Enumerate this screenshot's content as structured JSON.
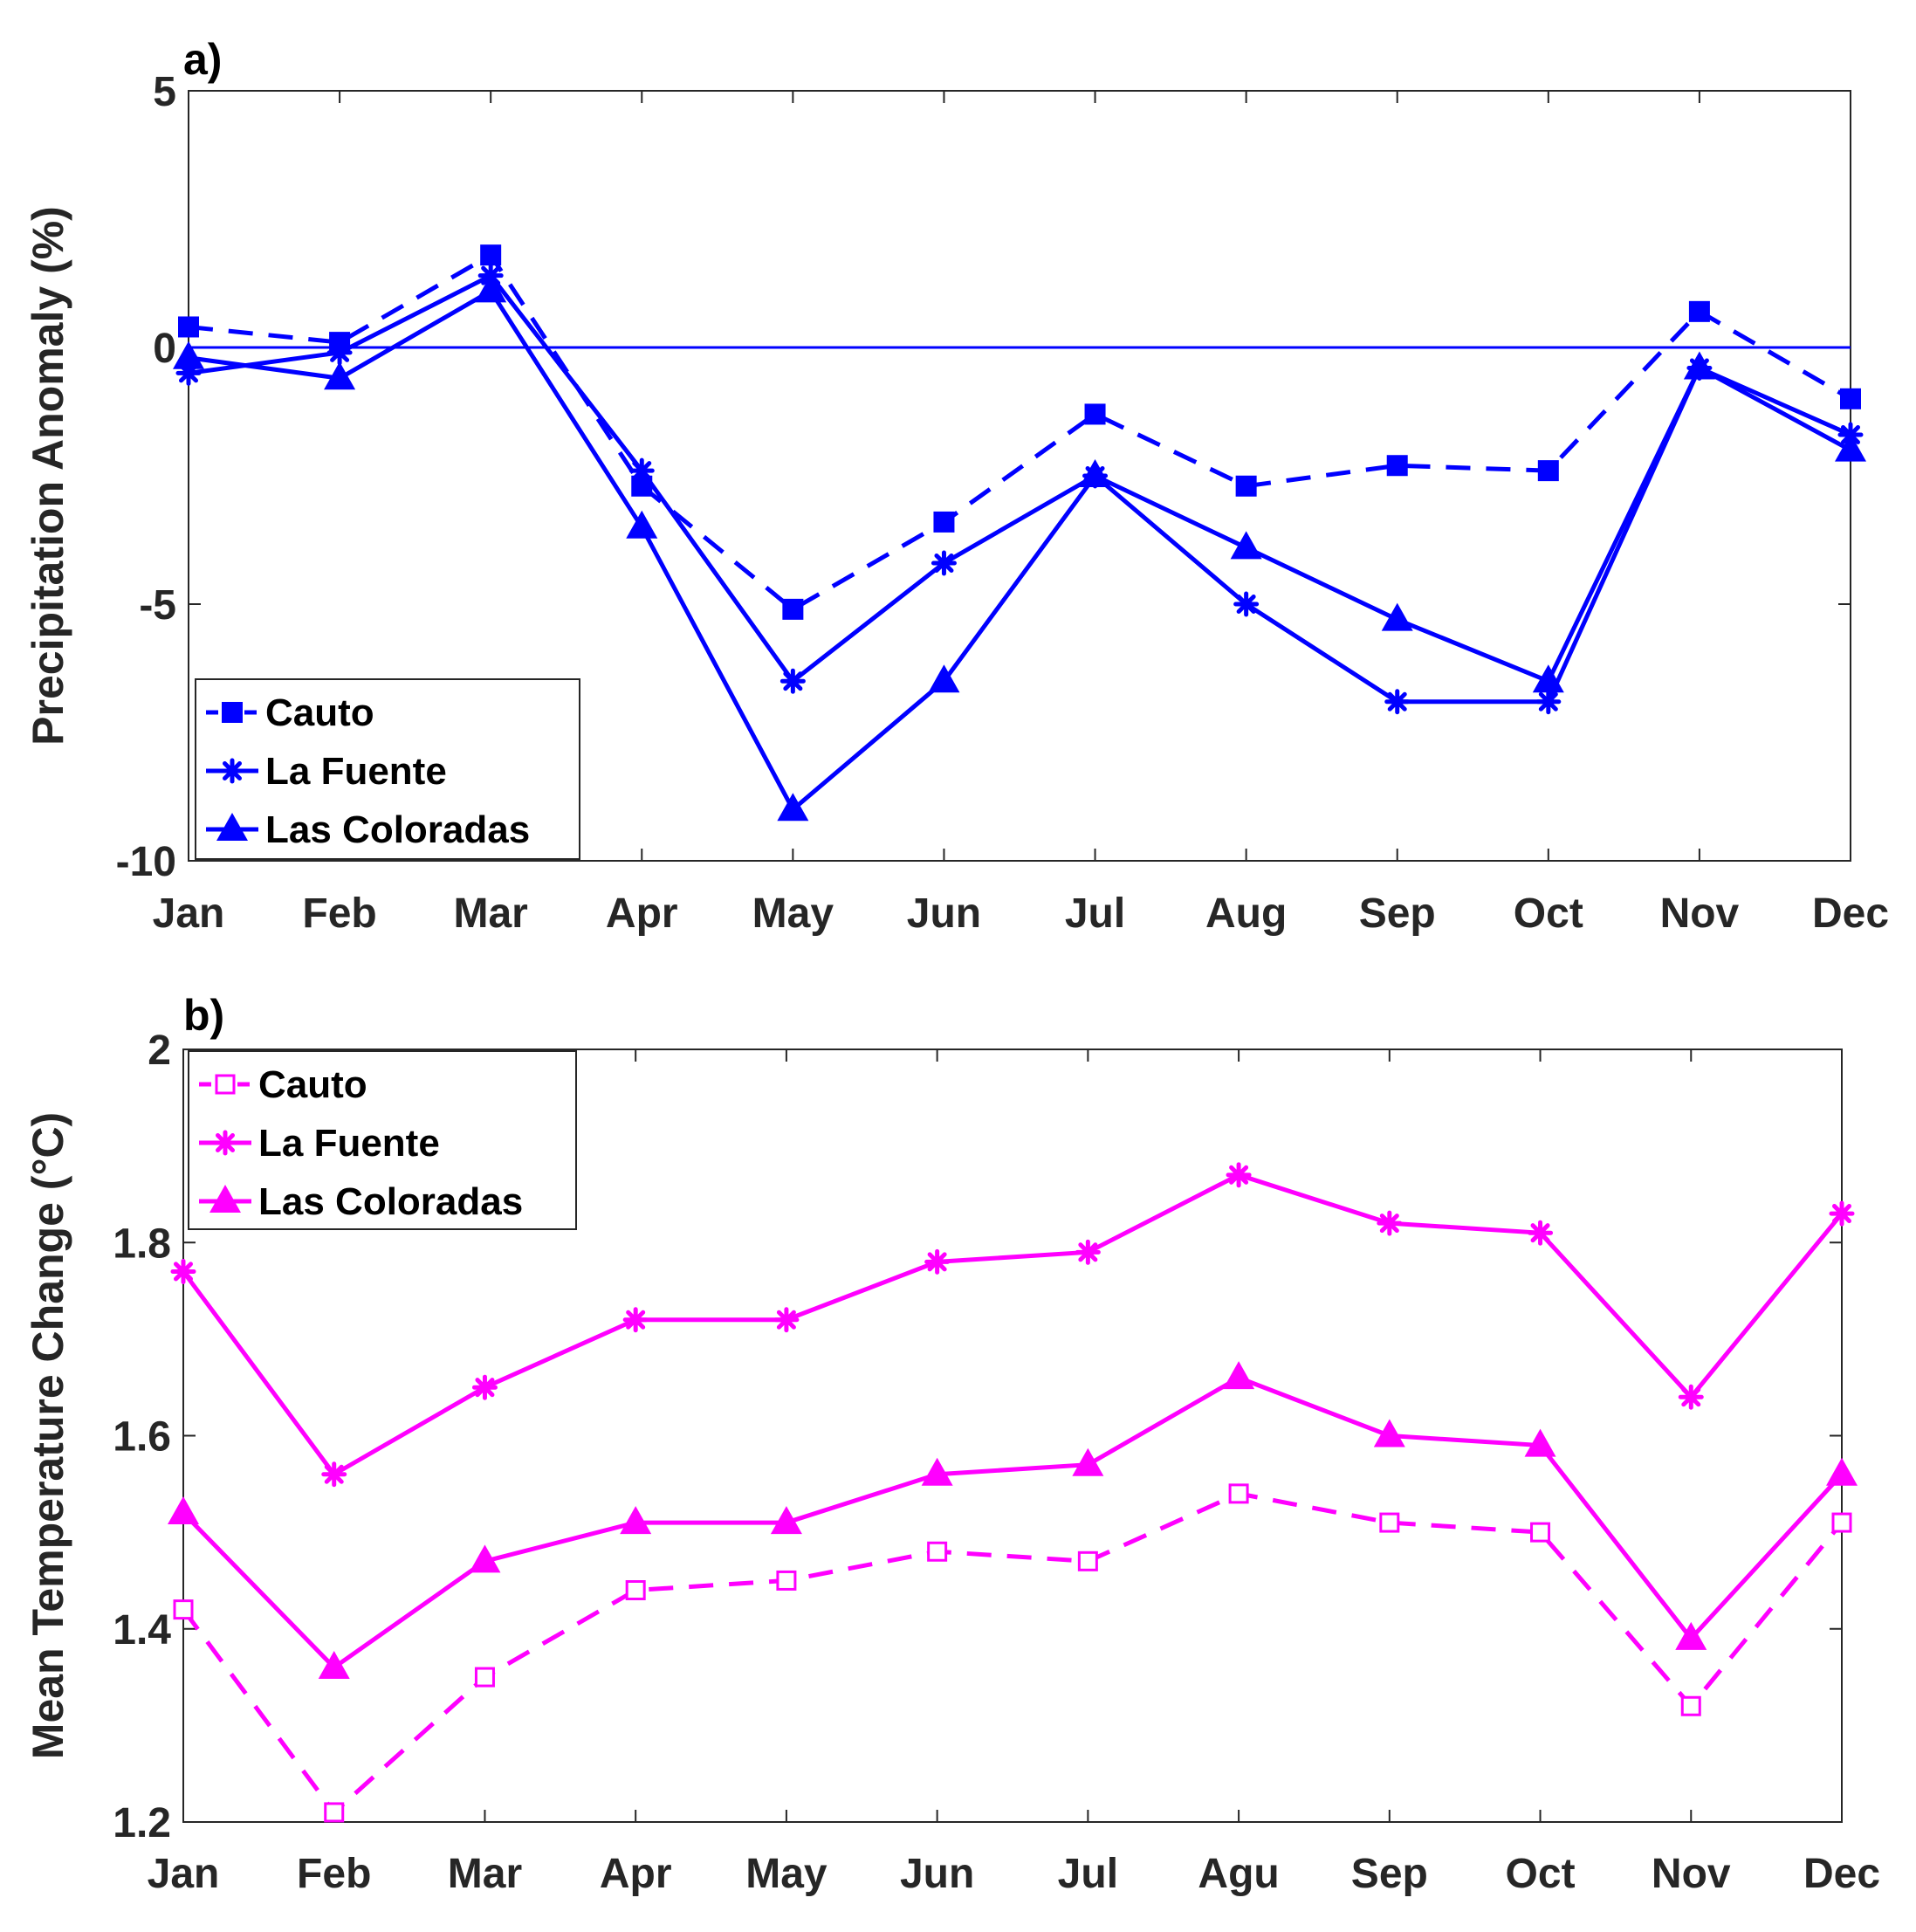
{
  "chart_data": [
    {
      "type": "line",
      "panel_label": "a)",
      "ylabel": "Precipitation Anomaly (%)",
      "xlabel": "",
      "ylim": [
        -10,
        5
      ],
      "yticks": [
        5,
        0,
        -5,
        -10
      ],
      "categories": [
        "Jan",
        "Feb",
        "Mar",
        "Apr",
        "May",
        "Jun",
        "Jul",
        "Aug",
        "Sep",
        "Oct",
        "Nov",
        "Dec"
      ],
      "color": "#0000ff",
      "reference_line": 0,
      "legend_position": "bottom-left",
      "series": [
        {
          "name": "Cauto",
          "style": "dashed",
          "marker": "filled-square",
          "values": [
            0.4,
            0.1,
            1.8,
            -2.7,
            -5.1,
            -3.4,
            -1.3,
            -2.7,
            -2.3,
            -2.4,
            0.7,
            -1.0
          ]
        },
        {
          "name": "La Fuente",
          "style": "solid",
          "marker": "asterisk",
          "values": [
            -0.5,
            -0.1,
            1.4,
            -2.4,
            -6.5,
            -4.2,
            -2.5,
            -5.0,
            -6.9,
            -6.9,
            -0.4,
            -1.7
          ]
        },
        {
          "name": "Las Coloradas",
          "style": "solid",
          "marker": "filled-triangle",
          "values": [
            -0.2,
            -0.6,
            1.1,
            -3.5,
            -9.0,
            -6.5,
            -2.5,
            -3.9,
            -5.3,
            -6.5,
            -0.4,
            -2.0
          ]
        }
      ]
    },
    {
      "type": "line",
      "panel_label": "b)",
      "ylabel": "Mean Temperature Change (°C)",
      "xlabel": "",
      "ylim": [
        1.2,
        2.0
      ],
      "yticks": [
        "2",
        "1.8",
        "1.6",
        "1.4",
        "1.2"
      ],
      "categories": [
        "Jan",
        "Feb",
        "Mar",
        "Apr",
        "May",
        "Jun",
        "Jul",
        "Agu",
        "Sep",
        "Oct",
        "Nov",
        "Dec"
      ],
      "color": "#ff00ff",
      "legend_position": "top-left",
      "series": [
        {
          "name": "Cauto",
          "style": "dashed",
          "marker": "open-square",
          "values": [
            1.42,
            1.21,
            1.35,
            1.44,
            1.45,
            1.48,
            1.47,
            1.54,
            1.51,
            1.5,
            1.32,
            1.51
          ]
        },
        {
          "name": "La Fuente",
          "style": "solid",
          "marker": "asterisk",
          "values": [
            1.77,
            1.56,
            1.65,
            1.72,
            1.72,
            1.78,
            1.79,
            1.87,
            1.82,
            1.81,
            1.64,
            1.83
          ]
        },
        {
          "name": "Las Coloradas",
          "style": "solid",
          "marker": "filled-triangle",
          "values": [
            1.52,
            1.36,
            1.47,
            1.51,
            1.51,
            1.56,
            1.57,
            1.66,
            1.6,
            1.59,
            1.39,
            1.56
          ]
        }
      ]
    }
  ]
}
